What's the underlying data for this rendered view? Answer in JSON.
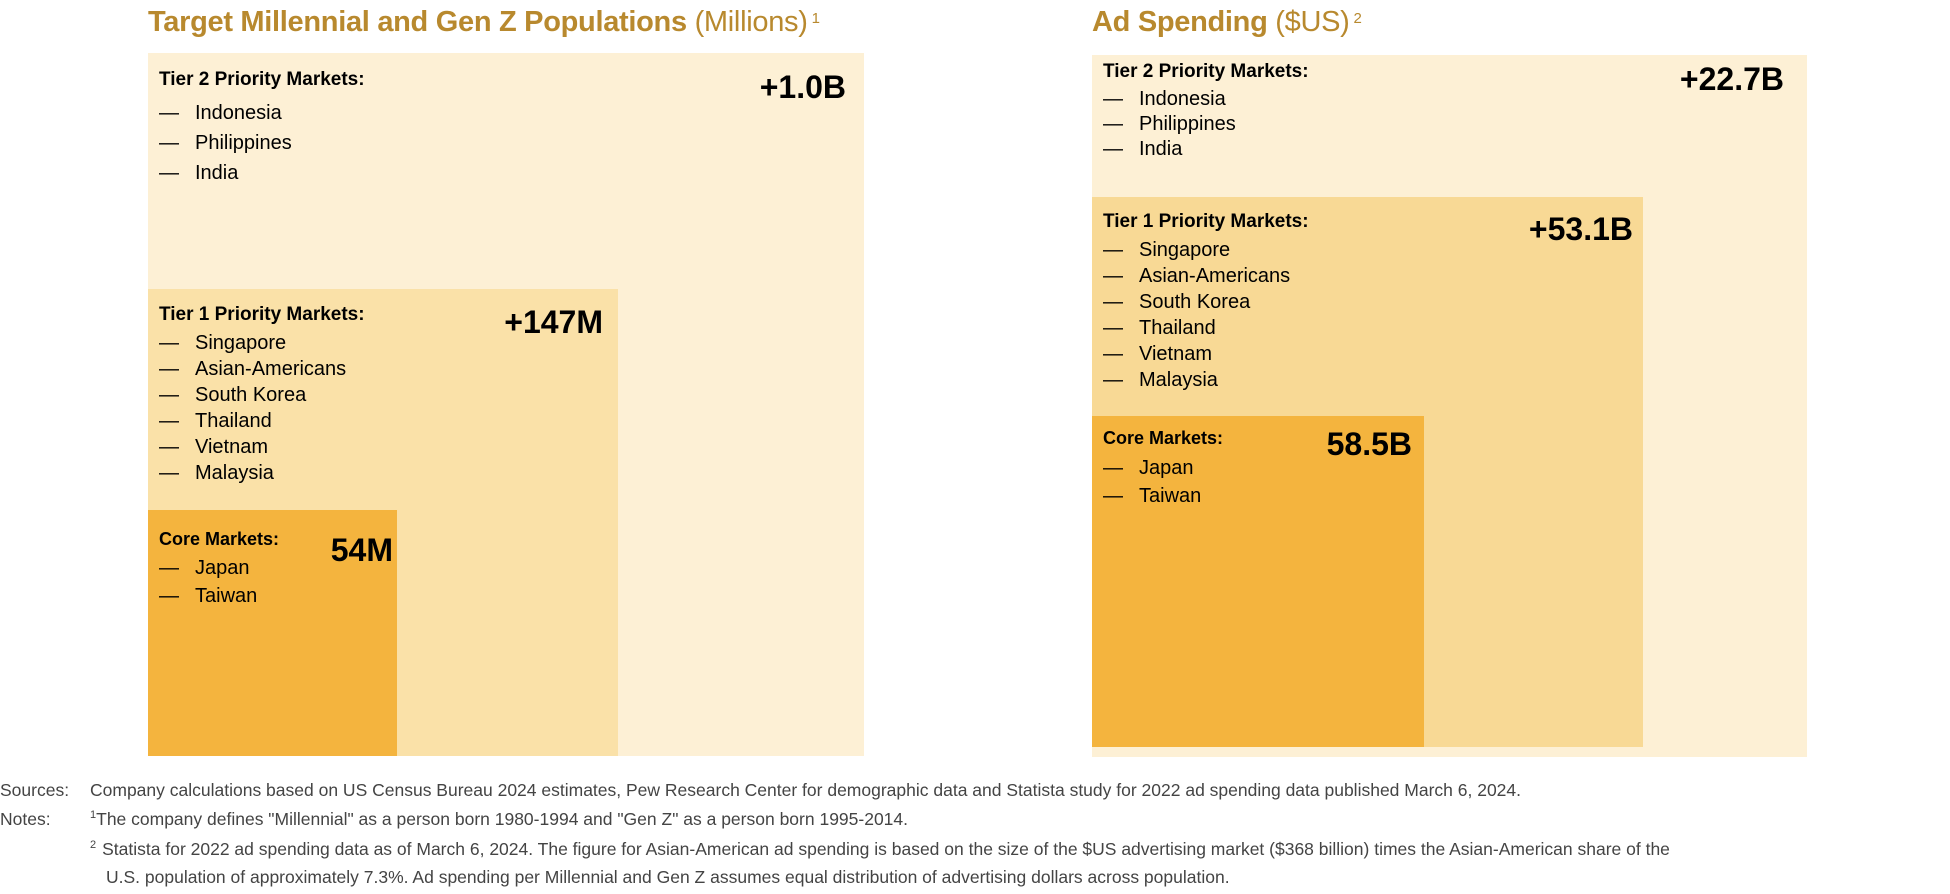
{
  "colors": {
    "title": "#b8892e",
    "tier2": "#fdf0d5",
    "tier1_left": "#fae1a8",
    "tier1_right": "#f8d995",
    "core": "#f4b43e"
  },
  "left": {
    "title": "Target Millennial and Gen Z Populations",
    "unit": "(Millions)",
    "footnote": "1",
    "tier2": {
      "header": "Tier 2 Priority Markets:",
      "value": "+1.0B",
      "items": [
        "Indonesia",
        "Philippines",
        "India"
      ]
    },
    "tier1": {
      "header": "Tier 1 Priority Markets:",
      "value": "+147M",
      "items": [
        "Singapore",
        "Asian-Americans",
        "South Korea",
        "Thailand",
        "Vietnam",
        "Malaysia"
      ]
    },
    "core": {
      "header": "Core Markets:",
      "value": "54M",
      "items": [
        "Japan",
        "Taiwan"
      ]
    }
  },
  "right": {
    "title": "Ad Spending",
    "unit": "($US)",
    "footnote": "2",
    "tier2": {
      "header": "Tier 2 Priority Markets:",
      "value": "+22.7B",
      "items": [
        "Indonesia",
        "Philippines",
        "India"
      ]
    },
    "tier1": {
      "header": "Tier 1 Priority Markets:",
      "value": "+53.1B",
      "items": [
        "Singapore",
        "Asian-Americans",
        "South Korea",
        "Thailand",
        "Vietnam",
        "Malaysia"
      ]
    },
    "core": {
      "header": "Core Markets:",
      "value": "58.5B",
      "items": [
        "Japan",
        "Taiwan"
      ]
    }
  },
  "chart_data": [
    {
      "type": "nested-area",
      "title": "Target Millennial and Gen Z Populations (Millions)",
      "segments": [
        {
          "name": "Core Markets",
          "label": "54M",
          "value": 54
        },
        {
          "name": "Tier 1 Priority Markets",
          "label": "+147M",
          "value": 147
        },
        {
          "name": "Tier 2 Priority Markets",
          "label": "+1.0B",
          "value": 1000
        }
      ]
    },
    {
      "type": "nested-area",
      "title": "Ad Spending ($US)",
      "segments": [
        {
          "name": "Core Markets",
          "label": "58.5B",
          "value": 58.5
        },
        {
          "name": "Tier 1 Priority Markets",
          "label": "+53.1B",
          "value": 53.1
        },
        {
          "name": "Tier 2 Priority Markets",
          "label": "+22.7B",
          "value": 22.7
        }
      ]
    }
  ],
  "footer": {
    "sources_label": "Sources:",
    "sources": "Company calculations based on US Census Bureau 2024 estimates, Pew Research Center for demographic data and Statista study for 2022 ad spending data published March 6, 2024.",
    "notes_label": "Notes:",
    "note1_mark": "1",
    "note1": "The company defines \"Millennial\" as a person born 1980-1994 and \"Gen Z\" as a person born 1995-2014.",
    "note2_mark": "2",
    "note2_line1": "Statista for 2022 ad spending data as of March 6, 2024. The figure for Asian-American ad spending is based on the size of the $US advertising market ($368 billion) times the Asian-American share of the",
    "note2_line2": "U.S. population of approximately 7.3%. Ad spending per Millennial and Gen Z assumes equal distribution of advertising dollars across population."
  }
}
